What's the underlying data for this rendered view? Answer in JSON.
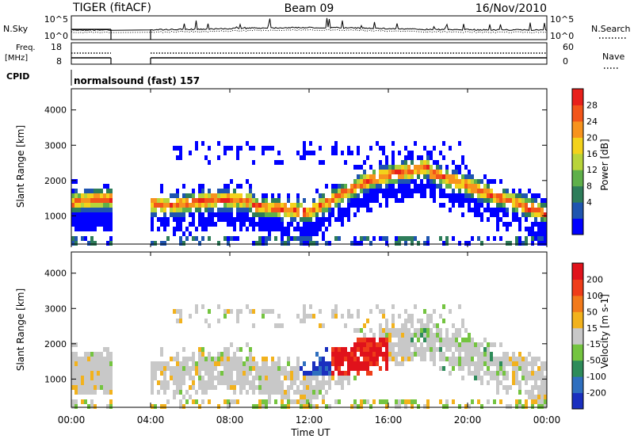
{
  "header": {
    "radar": "TIGER (fitACF)",
    "beam": "Beam 09",
    "date": "16/Nov/2010"
  },
  "panels": {
    "nsky": {
      "label": "N.Sky",
      "ticks": [
        "10^5",
        "10^0"
      ],
      "right_label": "N.Search",
      "right_ticks": [
        "10^5",
        "10^0"
      ]
    },
    "freq": {
      "label": "Freq.",
      "unit": "[MHz]",
      "ticks": [
        "18",
        "8"
      ],
      "right_label": "Nave",
      "right_ticks": [
        "60",
        "0"
      ]
    },
    "cpid": {
      "label": "CPID",
      "value": "normalsound (fast) 157"
    }
  },
  "chart_data": [
    {
      "type": "heatmap",
      "name": "power",
      "ylabel": "Slant Range [km]",
      "ylim": [
        200,
        4600
      ],
      "yticks": [
        "4000",
        "3000",
        "2000",
        "1000"
      ],
      "colorbar": {
        "label": "Power [dB]",
        "ticks": [
          "28",
          "24",
          "20",
          "16",
          "12",
          "8",
          "4"
        ],
        "colors": [
          "#0000ff",
          "#1f55b0",
          "#2e7d5a",
          "#5fb04a",
          "#b8d43a",
          "#f3d21b",
          "#f7931e",
          "#f2551a",
          "#e8201b"
        ]
      },
      "data_gap": [
        "02:00",
        "04:00"
      ]
    },
    {
      "type": "heatmap",
      "name": "velocity",
      "ylabel": "Slant Range [km]",
      "ylim": [
        200,
        4600
      ],
      "yticks": [
        "4000",
        "3000",
        "2000",
        "1000"
      ],
      "colorbar": {
        "label": "Velocity [m s-1]",
        "ticks": [
          "200",
          "100",
          "50",
          "15",
          "-15",
          "-50",
          "-100",
          "-200"
        ],
        "colors": [
          "#1a2fbf",
          "#2f6fbf",
          "#2e8c5a",
          "#74c440",
          "#c8c8c8",
          "#f2b21d",
          "#f27a1b",
          "#ef3d1a",
          "#e0121b"
        ]
      },
      "data_gap": [
        "02:00",
        "04:00"
      ]
    }
  ],
  "xaxis": {
    "label": "Time UT",
    "ticks": [
      "00:00",
      "04:00",
      "08:00",
      "12:00",
      "16:00",
      "20:00",
      "00:00"
    ]
  }
}
